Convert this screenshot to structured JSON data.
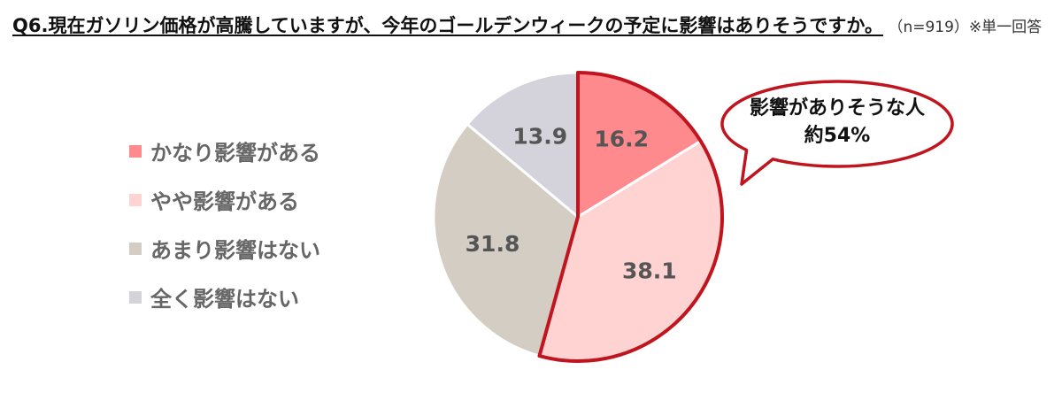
{
  "header": {
    "title": "Q6.現在ガソリン価格が高騰していますが、今年のゴールデンウィークの予定に影響はありそうですか。",
    "note": "（n=919）※単一回答"
  },
  "chart_data": {
    "type": "pie",
    "title": "Q6.現在ガソリン価格が高騰していますが、今年のゴールデンウィークの予定に影響はありそうですか。",
    "categories": [
      "かなり影響がある",
      "やや影響がある",
      "あまり影響はない",
      "全く影響はない"
    ],
    "values": [
      16.2,
      38.1,
      31.8,
      13.9
    ],
    "colors": [
      "#ff8a8e",
      "#ffd3d1",
      "#d3cdc4",
      "#d4d2da"
    ],
    "highlight_color": "#c0141e",
    "highlight_slices": [
      0,
      1
    ],
    "legend_position": "left"
  },
  "callout": {
    "line1": "影響がありそうな人",
    "line2": "約54%"
  }
}
